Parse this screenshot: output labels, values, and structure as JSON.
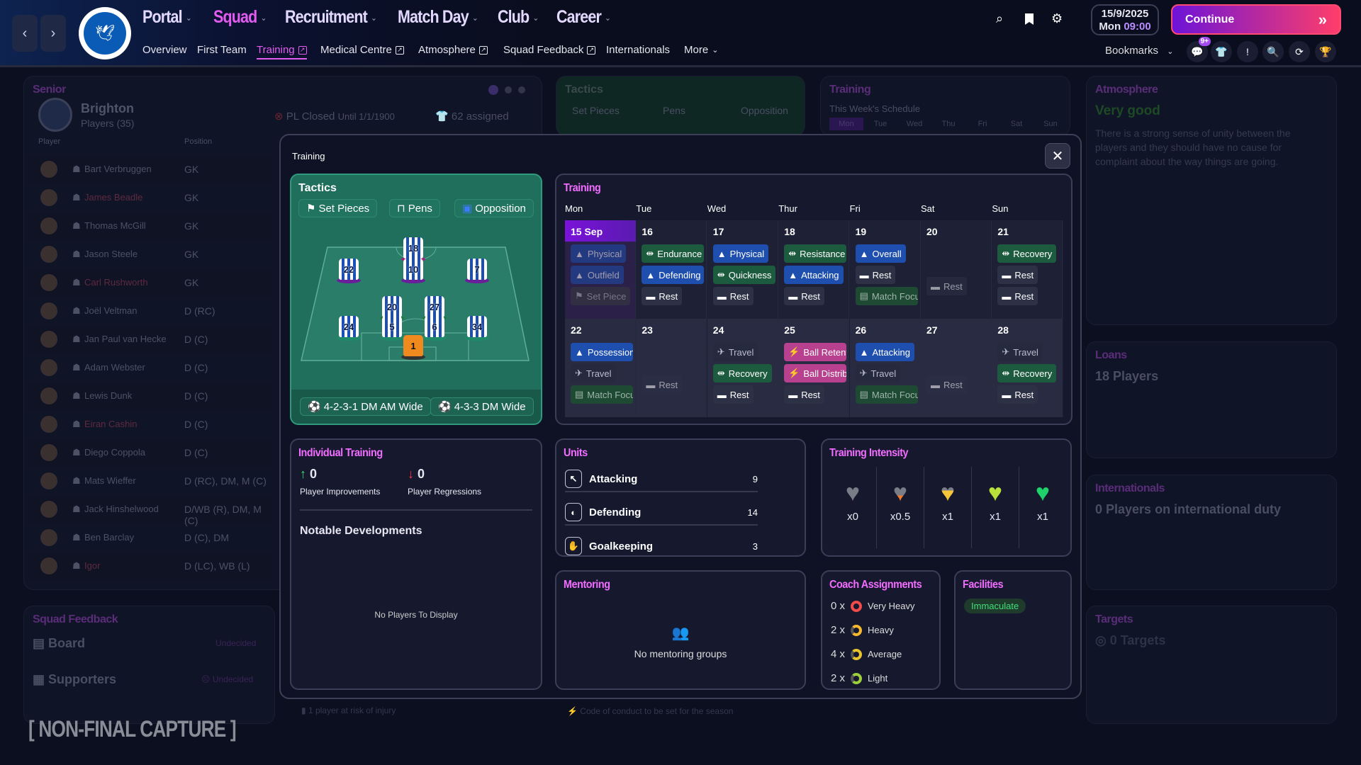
{
  "nav": {
    "back": "‹",
    "forward": "›",
    "menu": [
      {
        "label": "Portal",
        "active": false
      },
      {
        "label": "Squad",
        "active": true
      },
      {
        "label": "Recruitment",
        "active": false
      },
      {
        "label": "Match Day",
        "active": false
      },
      {
        "label": "Club",
        "active": false
      },
      {
        "label": "Career",
        "active": false
      }
    ],
    "sub": [
      {
        "label": "Overview",
        "ext": false
      },
      {
        "label": "First Team",
        "ext": false
      },
      {
        "label": "Training",
        "ext": true,
        "active": true
      },
      {
        "label": "Medical Centre",
        "ext": true
      },
      {
        "label": "Atmosphere",
        "ext": true
      },
      {
        "label": "Squad Feedback",
        "ext": true
      },
      {
        "label": "Internationals",
        "ext": false
      },
      {
        "label": "More",
        "ext": false,
        "chev": true
      }
    ],
    "date": "15/9/2025",
    "day": "Mon",
    "time": "09:00",
    "continue": "Continue",
    "bookmarks": "Bookmarks",
    "badge": "9+"
  },
  "background": {
    "senior": {
      "title": "Senior",
      "club": "Brighton",
      "players_count": "Players (35)",
      "col_player": "Player",
      "col_position": "Position",
      "pl_status": "PL Closed",
      "pl_until": "Until 1/1/1900",
      "assigned": "62 assigned",
      "players": [
        {
          "name": "Bart Verbruggen",
          "pos": "GK"
        },
        {
          "name": "James Beadle",
          "pos": "GK",
          "flag": true
        },
        {
          "name": "Thomas McGill",
          "pos": "GK"
        },
        {
          "name": "Jason Steele",
          "pos": "GK"
        },
        {
          "name": "Carl Rushworth",
          "pos": "GK",
          "flag": true
        },
        {
          "name": "Joël Veltman",
          "pos": "D (RC)"
        },
        {
          "name": "Jan Paul van Hecke",
          "pos": "D (C)"
        },
        {
          "name": "Adam Webster",
          "pos": "D (C)"
        },
        {
          "name": "Lewis Dunk",
          "pos": "D (C)"
        },
        {
          "name": "Eiran Cashin",
          "pos": "D (C)",
          "flag": true
        },
        {
          "name": "Diego Coppola",
          "pos": "D (C)"
        },
        {
          "name": "Mats Wieffer",
          "pos": "D (RC), DM, M (C)"
        },
        {
          "name": "Jack Hinshelwood",
          "pos": "D/WB (R), DM, M (C)"
        },
        {
          "name": "Ben Barclay",
          "pos": "D (C), DM"
        },
        {
          "name": "Igor",
          "pos": "D (LC), WB (L)",
          "flag": true
        }
      ]
    },
    "tactics": {
      "title": "Tactics",
      "set_pieces": "Set Pieces",
      "pens": "Pens",
      "opposition": "Opposition"
    },
    "training": {
      "title": "Training",
      "schedule": "This Week's Schedule",
      "days": [
        "Mon",
        "Tue",
        "Wed",
        "Thu",
        "Fri",
        "Sat",
        "Sun"
      ]
    },
    "atmosphere": {
      "title": "Atmosphere",
      "rating": "Very good",
      "text": "There is a strong sense of unity between the players and they should have no cause for complaint about the way things are going."
    },
    "loans": {
      "title": "Loans",
      "value": "18 Players"
    },
    "internationals": {
      "title": "Internationals",
      "value": "0 Players on international duty"
    },
    "targets": {
      "title": "Targets",
      "value": "0 Targets"
    },
    "squad_feedback": {
      "title": "Squad Feedback",
      "board": "Board",
      "board_status": "Undecided",
      "supporters": "Supporters",
      "supporters_status": "Undecided"
    },
    "injury": "1 player at risk of injury",
    "conduct": "Code of conduct to be set for the season",
    "watermark": "NON-FINAL CAPTURE"
  },
  "modal": {
    "title": "Training",
    "tactics": {
      "title": "Tactics",
      "set_pieces": "Set Pieces",
      "pens": "Pens",
      "opposition": "Opposition",
      "formation1": "4-2-3-1 DM AM Wide",
      "formation2": "4-3-3 DM Wide",
      "players": [
        {
          "n": "18",
          "role": "st"
        },
        {
          "n": "22",
          "role": "am"
        },
        {
          "n": "10",
          "role": "am"
        },
        {
          "n": "7",
          "role": "am"
        },
        {
          "n": "20",
          "role": "dm"
        },
        {
          "n": "27",
          "role": "dm"
        },
        {
          "n": "24",
          "role": "d"
        },
        {
          "n": "5",
          "role": "d"
        },
        {
          "n": "6",
          "role": "d"
        },
        {
          "n": "34",
          "role": "d"
        },
        {
          "n": "1",
          "role": "gk"
        }
      ]
    },
    "training": {
      "title": "Training",
      "days": [
        "Mon",
        "Tue",
        "Wed",
        "Thur",
        "Fri",
        "Sat",
        "Sun"
      ],
      "weeks": [
        [
          {
            "d": "15 Sep",
            "today": true,
            "dim": true,
            "s": [
              {
                "n": "Physical",
                "t": "blue"
              },
              {
                "n": "Outfield",
                "t": "blue"
              },
              {
                "n": "Set Piece",
                "t": "setpiece"
              }
            ]
          },
          {
            "d": "16",
            "s": [
              {
                "n": "Endurance",
                "t": "green"
              },
              {
                "n": "Defending",
                "t": "blue"
              },
              {
                "n": "Rest",
                "t": "rest"
              }
            ]
          },
          {
            "d": "17",
            "s": [
              {
                "n": "Physical",
                "t": "blue"
              },
              {
                "n": "Quickness",
                "t": "green"
              },
              {
                "n": "Rest",
                "t": "rest"
              }
            ]
          },
          {
            "d": "18",
            "s": [
              {
                "n": "Resistance",
                "t": "green"
              },
              {
                "n": "Attacking",
                "t": "blue"
              },
              {
                "n": "Rest",
                "t": "rest"
              }
            ]
          },
          {
            "d": "19",
            "s": [
              {
                "n": "Overall",
                "t": "blue"
              },
              {
                "n": "Rest",
                "t": "rest"
              },
              {
                "n": "Match Focus",
                "t": "match"
              }
            ]
          },
          {
            "d": "20",
            "s": [
              {
                "n": "Rest",
                "t": "rest",
                "dim": true
              }
            ]
          },
          {
            "d": "21",
            "s": [
              {
                "n": "Recovery",
                "t": "green"
              },
              {
                "n": "Rest",
                "t": "rest"
              },
              {
                "n": "Rest",
                "t": "rest"
              }
            ]
          }
        ],
        [
          {
            "d": "22",
            "s": [
              {
                "n": "Possession",
                "t": "blue"
              },
              {
                "n": "Travel",
                "t": "travel"
              },
              {
                "n": "Match Focus",
                "t": "match"
              }
            ]
          },
          {
            "d": "23",
            "s": [
              {
                "n": "Rest",
                "t": "rest",
                "dim": true
              }
            ]
          },
          {
            "d": "24",
            "s": [
              {
                "n": "Travel",
                "t": "travel"
              },
              {
                "n": "Recovery",
                "t": "green"
              },
              {
                "n": "Rest",
                "t": "rest"
              }
            ]
          },
          {
            "d": "25",
            "s": [
              {
                "n": "Ball Retention",
                "t": "pink"
              },
              {
                "n": "Ball Distribution",
                "t": "pink"
              },
              {
                "n": "Rest",
                "t": "rest"
              }
            ]
          },
          {
            "d": "26",
            "s": [
              {
                "n": "Attacking",
                "t": "blue"
              },
              {
                "n": "Travel",
                "t": "travel"
              },
              {
                "n": "Match Focus",
                "t": "match"
              }
            ]
          },
          {
            "d": "27",
            "s": [
              {
                "n": "Rest",
                "t": "rest",
                "dim": true
              }
            ]
          },
          {
            "d": "28",
            "s": [
              {
                "n": "Travel",
                "t": "travel"
              },
              {
                "n": "Recovery",
                "t": "green"
              },
              {
                "n": "Rest",
                "t": "rest"
              }
            ]
          }
        ]
      ]
    },
    "individual": {
      "title": "Individual Training",
      "improvements": "0",
      "improvements_label": "Player Improvements",
      "regressions": "0",
      "regressions_label": "Player Regressions",
      "notable": "Notable Developments",
      "empty": "No Players To Display"
    },
    "units": {
      "title": "Units",
      "rows": [
        {
          "name": "Attacking",
          "count": "9",
          "icon": "↖"
        },
        {
          "name": "Defending",
          "count": "14",
          "icon": "◐"
        },
        {
          "name": "Goalkeeping",
          "count": "3",
          "icon": "✋"
        }
      ]
    },
    "intensity": {
      "title": "Training Intensity",
      "levels": [
        {
          "label": "x0",
          "color": "#e8414b"
        },
        {
          "label": "x0.5",
          "color": "#f07a2a"
        },
        {
          "label": "x1",
          "color": "#f5c53a"
        },
        {
          "label": "x1",
          "color": "#b9e03a"
        },
        {
          "label": "x1",
          "color": "#1fd36a"
        }
      ]
    },
    "mentoring": {
      "title": "Mentoring",
      "empty": "No mentoring groups"
    },
    "coach": {
      "title": "Coach Assignments",
      "rows": [
        {
          "count": "0 x",
          "label": "Very Heavy",
          "color": "#f04a4a"
        },
        {
          "count": "2 x",
          "label": "Heavy",
          "color": "#f5b82e"
        },
        {
          "count": "4 x",
          "label": "Average",
          "color": "#e8c52c"
        },
        {
          "count": "2 x",
          "label": "Light",
          "color": "#9ccf3a"
        }
      ]
    },
    "facilities": {
      "title": "Facilities",
      "rating": "Immaculate"
    }
  }
}
